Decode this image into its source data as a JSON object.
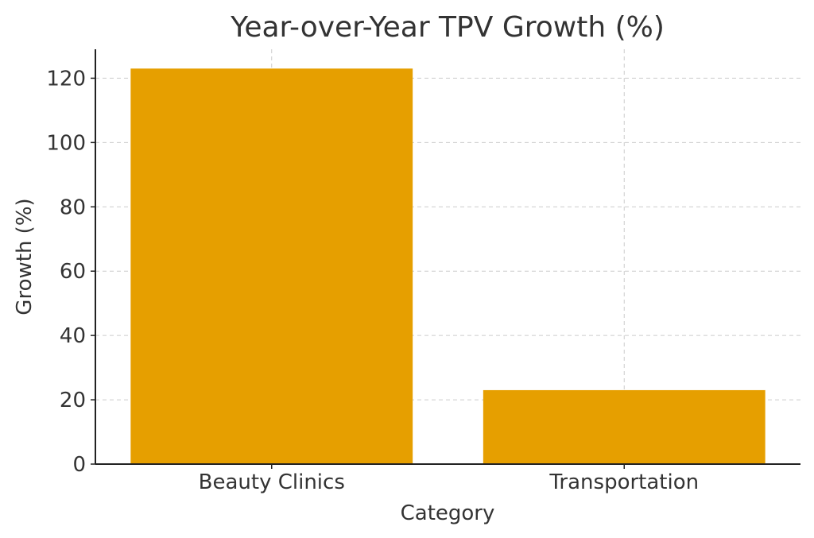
{
  "chart_data": {
    "type": "bar",
    "title": "Year-over-Year TPV Growth (%)",
    "xlabel": "Category",
    "ylabel": "Growth (%)",
    "categories": [
      "Beauty Clinics",
      "Transportation"
    ],
    "values": [
      123,
      23
    ],
    "ylim": [
      0,
      129
    ],
    "yticks": [
      0,
      20,
      40,
      60,
      80,
      100,
      120
    ],
    "grid": true,
    "bar_color": "#e69f00"
  }
}
